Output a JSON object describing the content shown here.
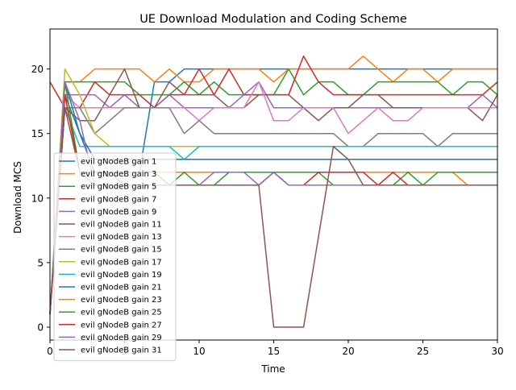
{
  "chart_data": {
    "type": "line",
    "title": "UE Download Modulation and Coding Scheme",
    "xlabel": "Time",
    "ylabel": "Download MCS",
    "xlim": [
      0,
      30
    ],
    "ylim": [
      -1,
      23.1
    ],
    "xticks": [
      "0",
      "5",
      "10",
      "15",
      "20",
      "25",
      "30"
    ],
    "yticks": [
      "0",
      "5",
      "10",
      "15",
      "20"
    ],
    "grid": false,
    "legend_position": "lower-left",
    "x": [
      0,
      1,
      2,
      3,
      4,
      5,
      6,
      7,
      8,
      9,
      10,
      11,
      12,
      13,
      14,
      15,
      16,
      17,
      18,
      19,
      20,
      21,
      22,
      23,
      24,
      25,
      26,
      27,
      28,
      29,
      30
    ],
    "series": [
      {
        "name": "evil gNodeB gain 1",
        "color": "#1f77b4",
        "values": [
          1,
          18,
          15,
          12,
          12,
          12,
          12,
          19,
          19,
          20,
          20,
          20,
          20,
          20,
          20,
          20,
          20,
          20,
          20,
          20,
          20,
          20,
          20,
          20,
          20,
          20,
          20,
          20,
          20,
          20,
          20
        ]
      },
      {
        "name": "evil gNodeB gain 3",
        "color": "#ff7f0e",
        "values": [
          1,
          19,
          19,
          20,
          20,
          20,
          20,
          19,
          20,
          19,
          19,
          20,
          20,
          20,
          20,
          19,
          20,
          20,
          20,
          20,
          20,
          21,
          20,
          19,
          20,
          20,
          19,
          20,
          20,
          20,
          20
        ]
      },
      {
        "name": "evil gNodeB gain 5",
        "color": "#2ca02c",
        "values": [
          1,
          19,
          19,
          19,
          19,
          19,
          18,
          18,
          18,
          19,
          18,
          19,
          18,
          18,
          18,
          18,
          20,
          18,
          19,
          19,
          18,
          18,
          19,
          19,
          19,
          19,
          19,
          18,
          19,
          19,
          18
        ]
      },
      {
        "name": "evil gNodeB gain 7",
        "color": "#d62728",
        "values": [
          19,
          17,
          17,
          19,
          18,
          18,
          18,
          17,
          18,
          18,
          20,
          18,
          20,
          18,
          18,
          18,
          18,
          21,
          19,
          18,
          18,
          18,
          18,
          18,
          18,
          18,
          18,
          18,
          18,
          18,
          19
        ]
      },
      {
        "name": "evil gNodeB gain 9",
        "color": "#9467bd",
        "values": [
          1,
          18,
          18,
          18,
          17,
          18,
          17,
          17,
          18,
          17,
          17,
          17,
          17,
          18,
          19,
          17,
          17,
          17,
          17,
          17,
          17,
          17,
          17,
          17,
          17,
          17,
          17,
          17,
          17,
          18,
          17
        ]
      },
      {
        "name": "evil gNodeB gain 11",
        "color": "#8c564b",
        "values": [
          1,
          17,
          16,
          16,
          18,
          20,
          17,
          17,
          19,
          18,
          18,
          18,
          17,
          17,
          18,
          18,
          18,
          17,
          16,
          17,
          17,
          18,
          18,
          17,
          17,
          17,
          17,
          17,
          17,
          16,
          18
        ]
      },
      {
        "name": "evil gNodeB gain 13",
        "color": "#e377c2",
        "values": [
          1,
          18,
          17,
          17,
          17,
          17,
          17,
          17,
          17,
          17,
          16,
          17,
          17,
          17,
          19,
          16,
          16,
          17,
          17,
          17,
          15,
          16,
          17,
          16,
          16,
          17,
          17,
          17,
          17,
          17,
          17
        ]
      },
      {
        "name": "evil gNodeB gain 15",
        "color": "#7f7f7f",
        "values": [
          1,
          17,
          17,
          15,
          16,
          17,
          17,
          17,
          17,
          15,
          16,
          15,
          15,
          15,
          15,
          15,
          15,
          15,
          15,
          15,
          14,
          14,
          15,
          15,
          15,
          15,
          14,
          15,
          15,
          15,
          15
        ]
      },
      {
        "name": "evil gNodeB gain 17",
        "color": "#bcbd22",
        "values": [
          1,
          20,
          18,
          15,
          14,
          14,
          14,
          14,
          14,
          14,
          14,
          14,
          14,
          14,
          14,
          14,
          14,
          14,
          14,
          14,
          14,
          14,
          14,
          14,
          14,
          14,
          14,
          14,
          14,
          14,
          14
        ]
      },
      {
        "name": "evil gNodeB gain 19",
        "color": "#17becf",
        "values": [
          1,
          17,
          14,
          14,
          14,
          14,
          14,
          14,
          14,
          13,
          14,
          14,
          14,
          14,
          14,
          14,
          14,
          14,
          14,
          14,
          14,
          14,
          14,
          14,
          14,
          14,
          14,
          14,
          14,
          14,
          14
        ]
      },
      {
        "name": "evil gNodeB gain 21",
        "color": "#1f77b4",
        "values": [
          1,
          19,
          15,
          13,
          13,
          13,
          13,
          13,
          13,
          13,
          13,
          13,
          13,
          13,
          13,
          13,
          13,
          13,
          13,
          13,
          13,
          13,
          13,
          13,
          13,
          13,
          13,
          13,
          13,
          13,
          13
        ]
      },
      {
        "name": "evil gNodeB gain 23",
        "color": "#ff7f0e",
        "values": [
          1,
          18,
          12,
          12,
          12,
          12,
          12,
          12,
          12,
          12,
          12,
          12,
          12,
          12,
          12,
          12,
          12,
          12,
          12,
          12,
          12,
          12,
          12,
          12,
          12,
          12,
          12,
          12,
          11,
          11,
          11
        ]
      },
      {
        "name": "evil gNodeB gain 25",
        "color": "#2ca02c",
        "values": [
          1,
          19,
          12,
          12,
          12,
          12,
          12,
          12,
          11,
          12,
          11,
          11,
          12,
          12,
          12,
          12,
          12,
          12,
          12,
          11,
          11,
          11,
          11,
          11,
          12,
          11,
          12,
          12,
          12,
          12,
          12
        ]
      },
      {
        "name": "evil gNodeB gain 27",
        "color": "#d62728",
        "values": [
          1,
          18,
          12,
          12,
          12,
          11,
          11,
          11,
          11,
          11,
          11,
          11,
          11,
          11,
          11,
          12,
          11,
          11,
          12,
          12,
          12,
          12,
          11,
          12,
          11,
          11,
          11,
          11,
          11,
          11,
          11
        ]
      },
      {
        "name": "evil gNodeB gain 29",
        "color": "#9467bd",
        "values": [
          1,
          19,
          16,
          11,
          11,
          11,
          11,
          11,
          11,
          11,
          11,
          12,
          12,
          12,
          11,
          12,
          11,
          11,
          11,
          11,
          11,
          11,
          11,
          11,
          11,
          11,
          11,
          11,
          11,
          11,
          11
        ]
      },
      {
        "name": "evil gNodeB gain 31",
        "color": "#8c564b",
        "values": [
          1,
          17,
          12,
          11,
          11,
          11,
          11,
          11,
          11,
          11,
          11,
          11,
          11,
          11,
          11,
          0,
          0,
          0,
          7,
          14,
          13,
          11,
          11,
          11,
          11,
          11,
          11,
          11,
          11,
          11,
          11
        ]
      }
    ]
  }
}
